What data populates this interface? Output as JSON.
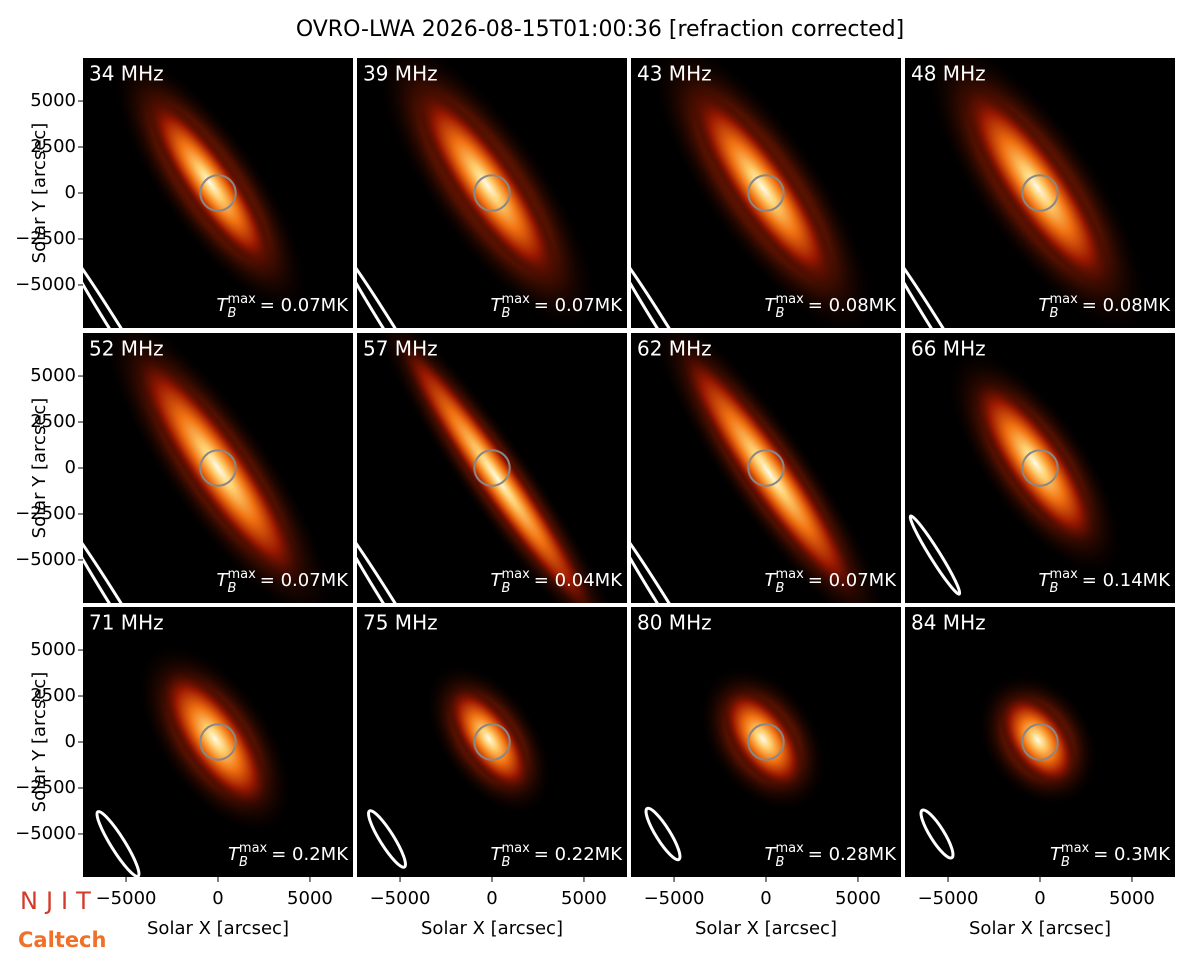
{
  "chart_data": {
    "type": "image_grid",
    "title": "OVRO-LWA 2026-08-15T01:00:36 [refraction corrected]",
    "xlabel": "Solar X [arcsec]",
    "ylabel": "Solar Y [arcsec]",
    "xlim": [
      -7340,
      7340
    ],
    "ylim": [
      -7340,
      7340
    ],
    "xticks": [
      {
        "value": -5000,
        "label": "−5000"
      },
      0,
      5000
    ],
    "yticks": [
      {
        "value": -5000,
        "label": "−5000"
      },
      {
        "value": -2500,
        "label": "−2500"
      },
      0,
      2500,
      5000
    ],
    "tb_symbol": "T",
    "tb_sub": "B",
    "tb_sup": "max",
    "panels": [
      {
        "freq": "34 MHz",
        "tb_max": "= 0.07MK"
      },
      {
        "freq": "39 MHz",
        "tb_max": "= 0.07MK"
      },
      {
        "freq": "43 MHz",
        "tb_max": "= 0.08MK"
      },
      {
        "freq": "48 MHz",
        "tb_max": "= 0.08MK"
      },
      {
        "freq": "52 MHz",
        "tb_max": "= 0.07MK"
      },
      {
        "freq": "57 MHz",
        "tb_max": "= 0.04MK"
      },
      {
        "freq": "62 MHz",
        "tb_max": "= 0.07MK"
      },
      {
        "freq": "66 MHz",
        "tb_max": "= 0.14MK"
      },
      {
        "freq": "71 MHz",
        "tb_max": "= 0.2MK"
      },
      {
        "freq": "75 MHz",
        "tb_max": "= 0.22MK"
      },
      {
        "freq": "80 MHz",
        "tb_max": "= 0.28MK"
      },
      {
        "freq": "84 MHz",
        "tb_max": "= 0.3MK"
      }
    ],
    "logos": [
      "NJIT",
      "Caltech"
    ]
  }
}
